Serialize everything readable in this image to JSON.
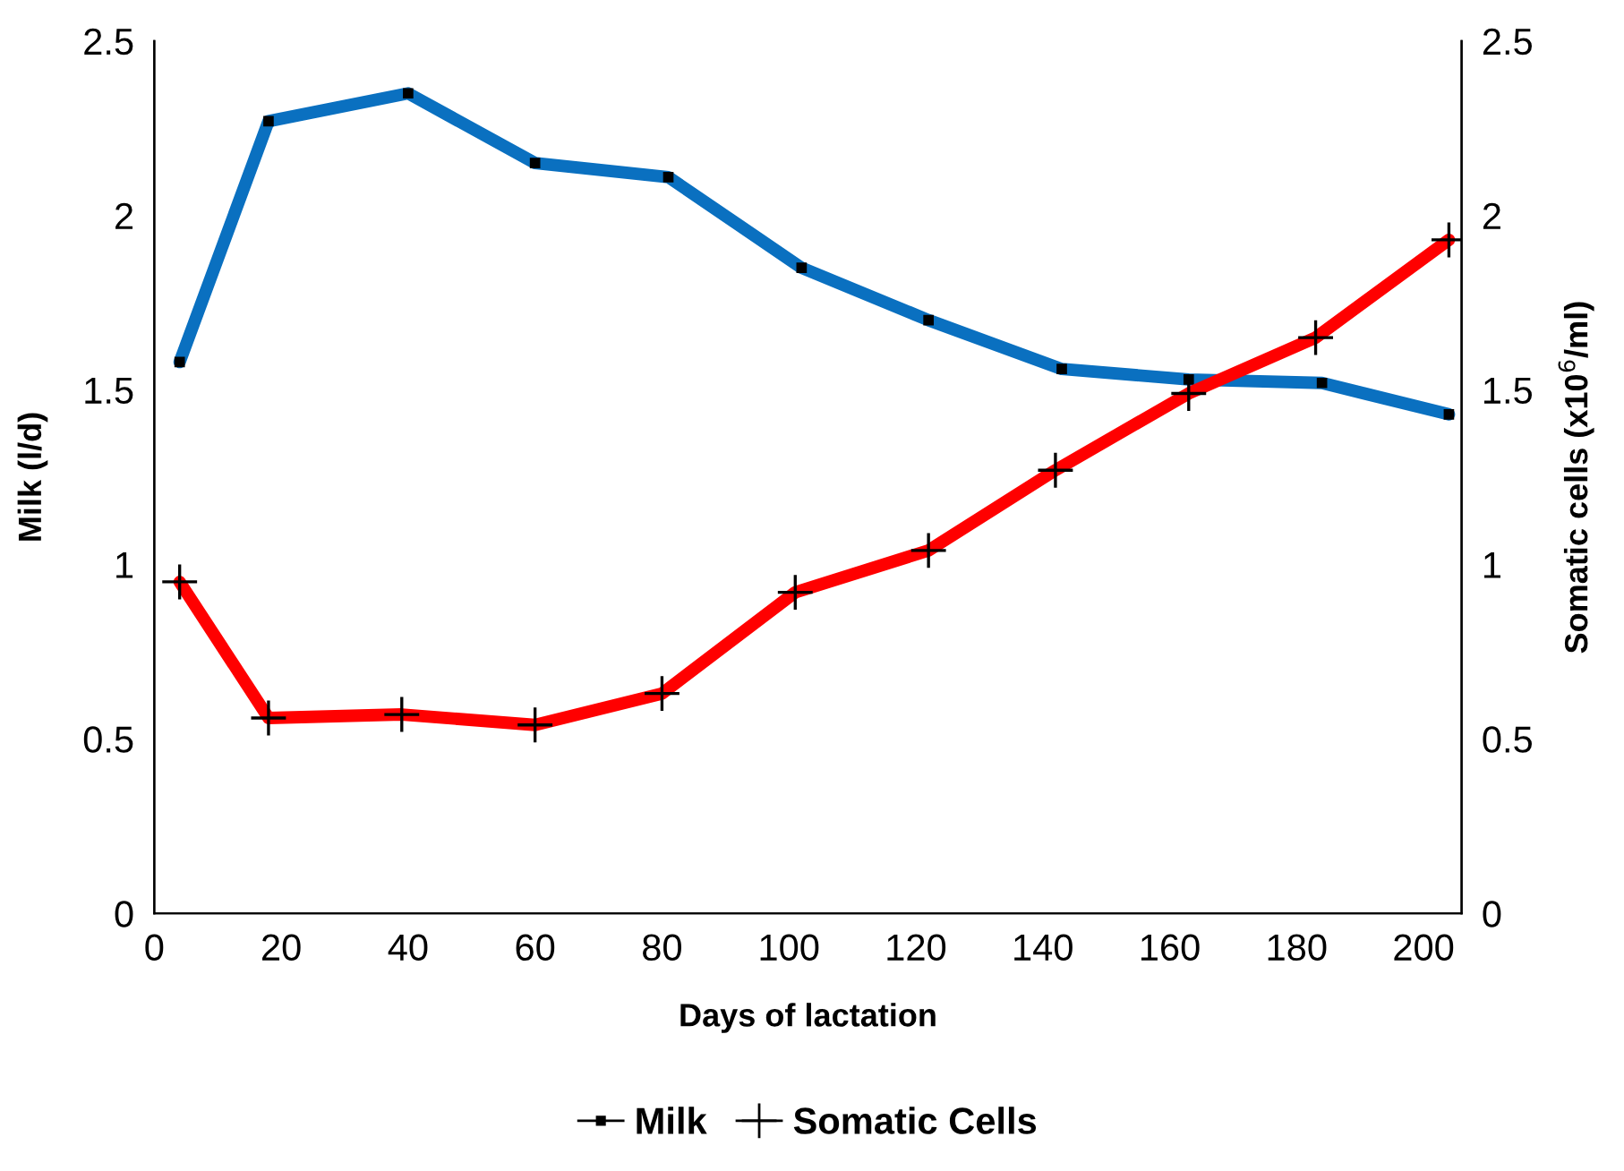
{
  "chart_data": {
    "type": "line",
    "xlabel": "Days of lactation",
    "ylabel": "Milk (l/d)",
    "y2label": "Somatic cells (x10$^{6}$/ml)",
    "xlim": [
      0,
      206
    ],
    "xticks": [
      0,
      20,
      40,
      60,
      80,
      100,
      120,
      140,
      160,
      180,
      200
    ],
    "ylim": [
      0,
      2.5
    ],
    "yticks": [
      0,
      0.5,
      1,
      1.5,
      2,
      2.5
    ],
    "y2lim": [
      0,
      2.5
    ],
    "y2ticks": [
      0,
      0.5,
      1,
      1.5,
      2,
      2.5
    ],
    "grid": false,
    "legend": "bottom",
    "line_style": "solid",
    "series": [
      {
        "name": "Milk",
        "color": "#0a70c0",
        "marker": "square",
        "x": [
          4,
          18,
          40,
          60,
          81,
          102,
          122,
          143,
          163,
          184,
          204
        ],
        "values": [
          1.58,
          2.27,
          2.35,
          2.15,
          2.11,
          1.85,
          1.7,
          1.56,
          1.53,
          1.52,
          1.43
        ]
      },
      {
        "name": "Somatic Cells",
        "color": "#ff0000",
        "marker": "cross",
        "axis": "y2",
        "x": [
          4,
          18,
          39,
          60,
          80,
          101,
          122,
          142,
          163,
          183,
          204
        ],
        "values": [
          0.95,
          0.56,
          0.57,
          0.54,
          0.63,
          0.92,
          1.04,
          1.27,
          1.49,
          1.65,
          1.93
        ]
      }
    ]
  }
}
